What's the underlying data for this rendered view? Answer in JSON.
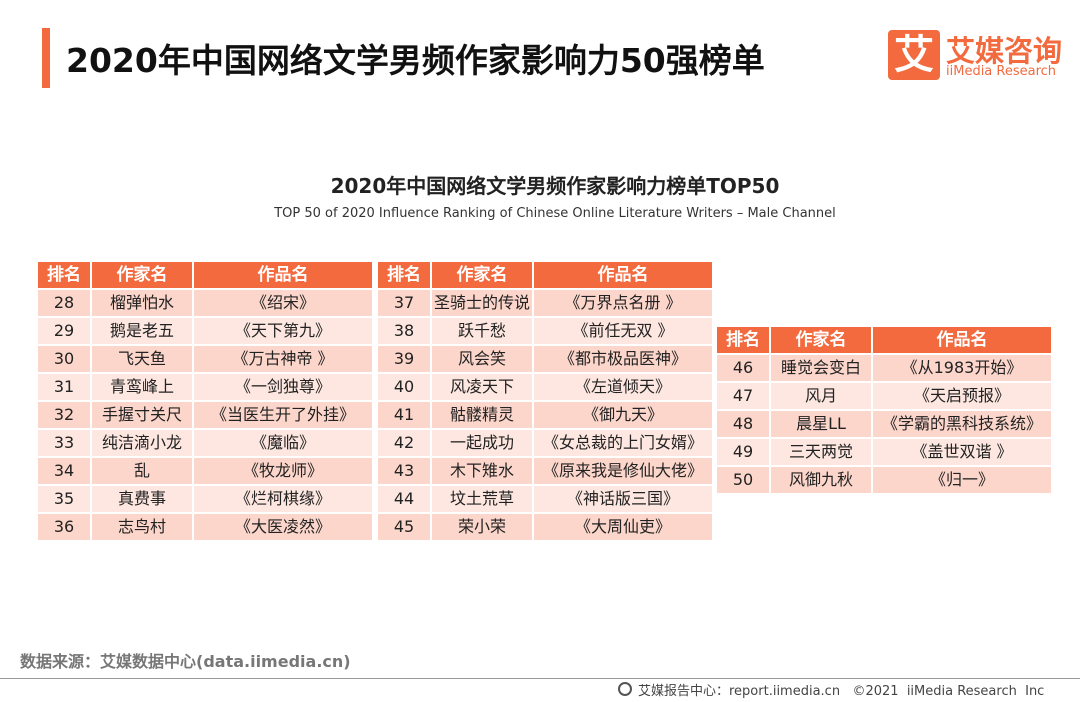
{
  "header": {
    "title": "2020年中国网络文学男频作家影响力50强榜单"
  },
  "logo": {
    "mark": "艾",
    "name": "艾媒咨询",
    "sub": "iiMedia Research"
  },
  "subtitle": "2020年中国网络文学男频作家影响力榜单TOP50",
  "subtitle_en": "TOP 50 of 2020 Influence Ranking of Chinese Online Literature Writers – Male Channel",
  "tables": [
    {
      "headers": [
        "排名",
        "作家名",
        "作品名"
      ],
      "rows": [
        [
          28,
          "榴弹怕水",
          "《绍宋》"
        ],
        [
          29,
          "鹅是老五",
          "《天下第九》"
        ],
        [
          30,
          "飞天鱼",
          "《万古神帝 》"
        ],
        [
          31,
          "青鸾峰上",
          "《一剑独尊》"
        ],
        [
          32,
          "手握寸关尺",
          "《当医生开了外挂》"
        ],
        [
          33,
          "纯洁滴小龙",
          "《魔临》"
        ],
        [
          34,
          "乱",
          "《牧龙师》"
        ],
        [
          35,
          "真费事",
          "《烂柯棋缘》"
        ],
        [
          36,
          "志鸟村",
          "《大医凌然》"
        ]
      ]
    },
    {
      "headers": [
        "排名",
        "作家名",
        "作品名"
      ],
      "rows": [
        [
          37,
          "圣骑士的传说",
          "《万界点名册 》"
        ],
        [
          38,
          "跃千愁",
          "《前任无双 》"
        ],
        [
          39,
          "风会笑",
          "《都市极品医神》"
        ],
        [
          40,
          "风凌天下",
          "《左道倾天》"
        ],
        [
          41,
          "骷髅精灵",
          "《御九天》"
        ],
        [
          42,
          "一起成功",
          "《女总裁的上门女婿》"
        ],
        [
          43,
          "木下雉水",
          "《原来我是修仙大佬》"
        ],
        [
          44,
          "坟土荒草",
          "《神话版三国》"
        ],
        [
          45,
          "荣小荣",
          "《大周仙吏》"
        ]
      ]
    },
    {
      "headers": [
        "排名",
        "作家名",
        "作品名"
      ],
      "rows": [
        [
          46,
          "睡觉会变白",
          "《从1983开始》"
        ],
        [
          47,
          "风月",
          "《天启预报》"
        ],
        [
          48,
          "晨星LL",
          "《学霸的黑科技系统》"
        ],
        [
          49,
          "三天两觉",
          "《盖世双谐 》"
        ],
        [
          50,
          "风御九秋",
          "《归一》"
        ]
      ]
    }
  ],
  "source": "数据来源：艾媒数据中心(data.iimedia.cn)",
  "footer": "艾媒报告中心：report.iimedia.cn   ©2021  iiMedia Research  Inc"
}
